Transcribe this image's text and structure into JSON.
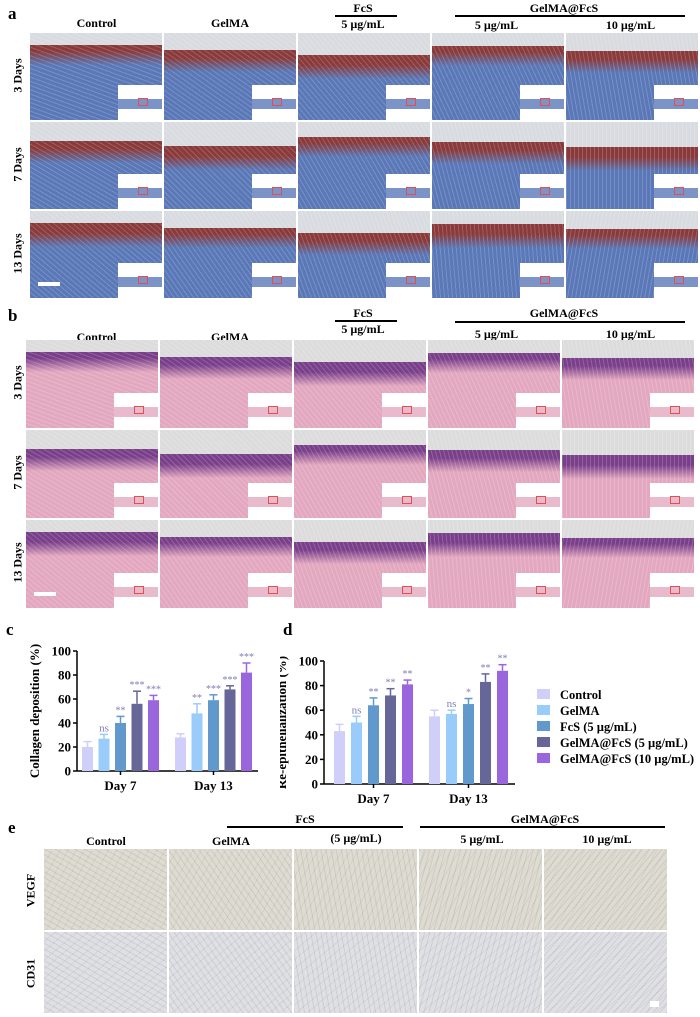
{
  "panels": {
    "a": {
      "letter": "a",
      "columns": [
        "Control",
        "GelMA",
        "5 µg/mL",
        "5 µg/mL",
        "10 µg/mL"
      ],
      "group_fcs": "FcS",
      "group_gelma_fcs": "GelMA@FcS",
      "rows": [
        "3 Days",
        "7 Days",
        "13 Days"
      ],
      "stain": "masson",
      "colors": {
        "top": "#8a3a3a",
        "base": "#5a78b8",
        "bg": "#d8dbe0"
      }
    },
    "b": {
      "letter": "b",
      "columns": [
        "Control",
        "GelMA",
        "5 µg/mL",
        "5 µg/mL",
        "10 µg/mL"
      ],
      "group_fcs": "FcS",
      "group_gelma_fcs": "GelMA@FcS",
      "rows": [
        "3 Days",
        "7 Days",
        "13 Days"
      ],
      "stain": "he",
      "colors": {
        "top": "#7a3f8a",
        "base": "#e3a8bf",
        "bg": "#dcdcdc"
      }
    },
    "e": {
      "letter": "e",
      "columns": [
        "Control",
        "GelMA",
        "(5 µg/mL)",
        "5 µg/mL",
        "10 µg/mL"
      ],
      "group_fcs": "FcS",
      "group_gelma_fcs": "GelMA@FcS",
      "rows": [
        "VEGF",
        "CD31"
      ],
      "colors": {
        "vegf": "#dedcd2",
        "cd31": "#dfe0e6"
      }
    }
  },
  "chart_data": [
    {
      "letter": "c",
      "type": "bar",
      "title": "",
      "xlabel": "",
      "ylabel": "Collagen deposition (%)",
      "ylim": [
        0,
        100
      ],
      "yticks": [
        "0",
        "20",
        "40",
        "60",
        "80",
        "100"
      ],
      "categories": [
        "Day 7",
        "Day 13"
      ],
      "series": [
        {
          "name": "Control",
          "color": "#cfcffa",
          "values": [
            20,
            28
          ],
          "errors": [
            4.5,
            3
          ],
          "sig": [
            "",
            ""
          ]
        },
        {
          "name": "GelMA",
          "color": "#99ccfa",
          "values": [
            27,
            48
          ],
          "errors": [
            3.5,
            8
          ],
          "sig": [
            "ns",
            "**"
          ]
        },
        {
          "name": "FcS (5 µg/mL)",
          "color": "#6199cc",
          "values": [
            40,
            59
          ],
          "errors": [
            5.5,
            4.5
          ],
          "sig": [
            "**",
            "***"
          ]
        },
        {
          "name": "GelMA@FcS (5 µg/mL)",
          "color": "#666699",
          "values": [
            56,
            68
          ],
          "errors": [
            10.5,
            3
          ],
          "sig": [
            "***",
            "***"
          ]
        },
        {
          "name": "GelMA@FcS (10 µg/mL)",
          "color": "#9966dd",
          "values": [
            59,
            82
          ],
          "errors": [
            4,
            8
          ],
          "sig": [
            "***",
            "***"
          ]
        }
      ]
    },
    {
      "letter": "d",
      "type": "bar",
      "title": "",
      "xlabel": "",
      "ylabel": "Re-epithelialization (%)",
      "ylim": [
        0,
        100
      ],
      "yticks": [
        "0",
        "20",
        "40",
        "60",
        "80",
        "100"
      ],
      "categories": [
        "Day 7",
        "Day 13"
      ],
      "legend_position": "right",
      "series": [
        {
          "name": "Control",
          "color": "#cfcffa",
          "values": [
            43,
            55
          ],
          "errors": [
            5.5,
            5
          ],
          "sig": [
            "",
            ""
          ]
        },
        {
          "name": "GelMA",
          "color": "#99ccfa",
          "values": [
            50,
            57
          ],
          "errors": [
            5,
            3
          ],
          "sig": [
            "ns",
            "ns"
          ]
        },
        {
          "name": "FcS (5 µg/mL)",
          "color": "#6199cc",
          "values": [
            64,
            65
          ],
          "errors": [
            6,
            4.5
          ],
          "sig": [
            "**",
            "*"
          ]
        },
        {
          "name": "GelMA@FcS (5 µg/mL)",
          "color": "#666699",
          "values": [
            72,
            83
          ],
          "errors": [
            5.5,
            6.5
          ],
          "sig": [
            "**",
            "**"
          ]
        },
        {
          "name": "GelMA@FcS (10 µg/mL)",
          "color": "#9966dd",
          "values": [
            81,
            92
          ],
          "errors": [
            3.5,
            5
          ],
          "sig": [
            "**",
            "**"
          ]
        }
      ]
    }
  ]
}
